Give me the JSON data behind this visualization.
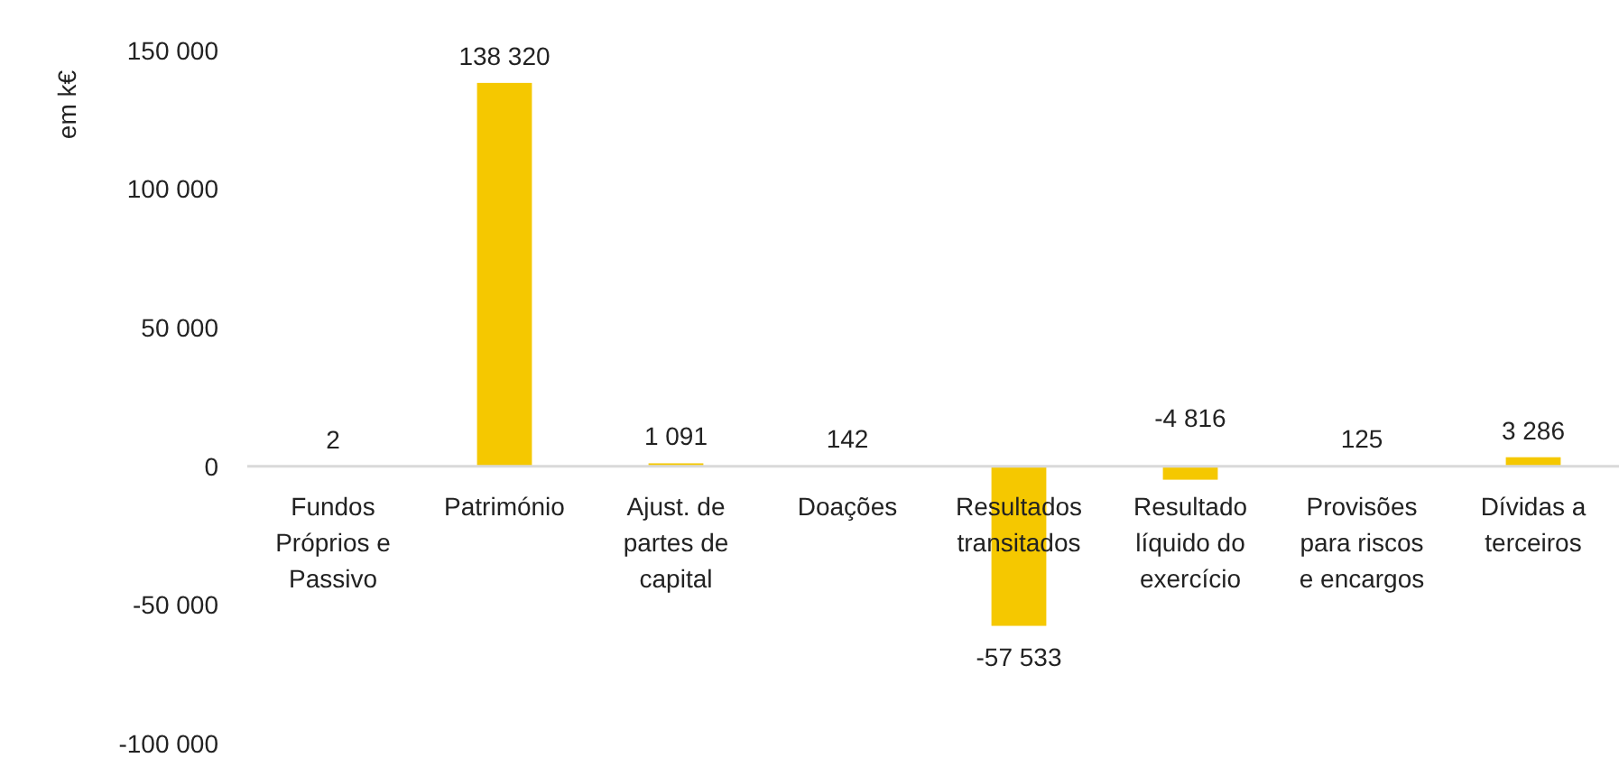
{
  "chart_data": {
    "type": "bar",
    "ylabel": "em k€",
    "categories": [
      "Fundos Próprios e Passivo",
      "Património",
      "Ajust. de partes de capital",
      "Doações",
      "Resultados transitados",
      "Resultado líquido do exercício",
      "Provisões para riscos e encargos",
      "Dívidas a terceiros"
    ],
    "values": [
      2,
      138320,
      1091,
      142,
      -57533,
      -4816,
      125,
      3286
    ],
    "value_labels": [
      "2",
      "138 320",
      "1 091",
      "142",
      "-57 533",
      "-4 816",
      "125",
      "3 286"
    ],
    "color": "#f5c800",
    "ylim": [
      -100000,
      150000
    ],
    "yticks": [
      {
        "value": -100000,
        "label": "-100 000"
      },
      {
        "value": -50000,
        "label": "-50 000"
      },
      0,
      {
        "value": 50000,
        "label": "50 000"
      },
      {
        "value": 100000,
        "label": "100 000"
      },
      {
        "value": 150000,
        "label": "150 000"
      }
    ],
    "grid": false
  }
}
